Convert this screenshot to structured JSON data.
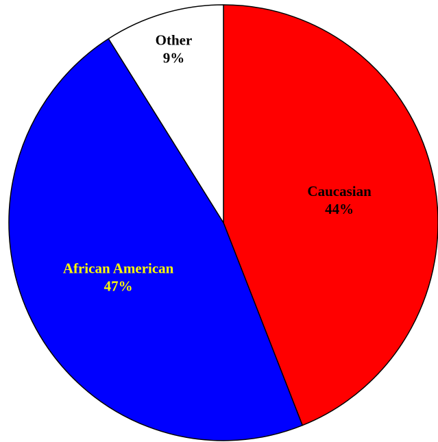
{
  "chart_data": {
    "type": "pie",
    "start_angle_deg": 0,
    "direction": "clockwise",
    "slices": [
      {
        "label": "Caucasian",
        "value": 44,
        "value_label": "44%",
        "color": "#ff0000",
        "label_color": "#000000"
      },
      {
        "label": "African American",
        "value": 47,
        "value_label": "47%",
        "color": "#0000ff",
        "label_color": "#ffff00"
      },
      {
        "label": "Other",
        "value": 9,
        "value_label": "9%",
        "color": "#ffffff",
        "label_color": "#000000"
      }
    ],
    "legend": "none"
  }
}
